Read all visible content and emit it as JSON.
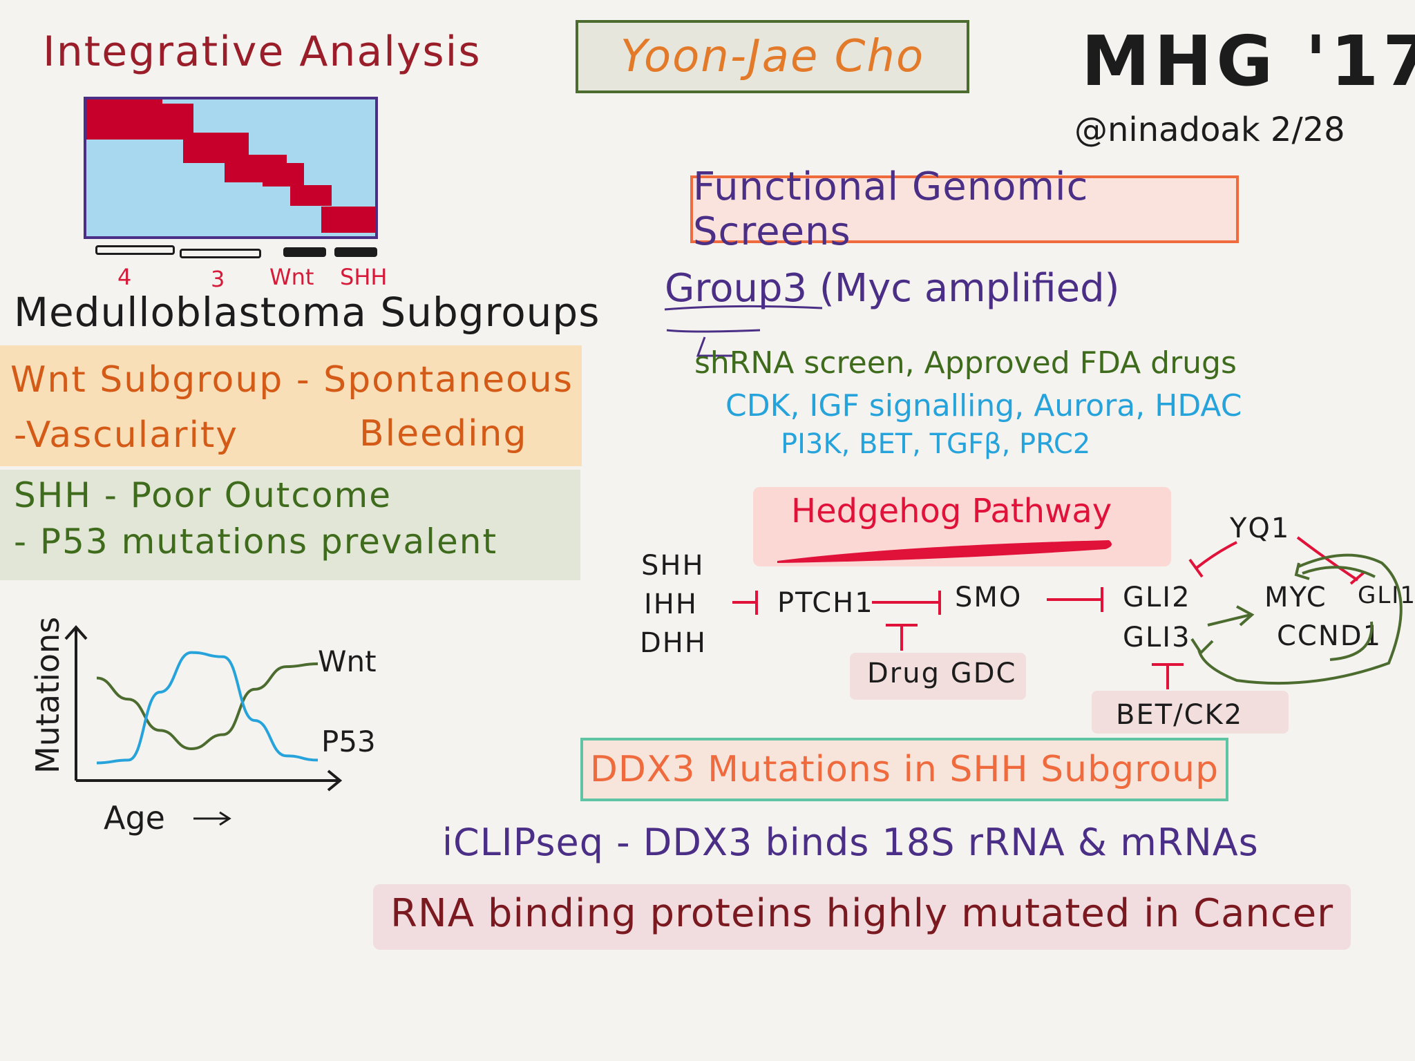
{
  "header": {
    "speaker": "Yoon-Jae Cho",
    "conference": "MHG '17",
    "handle": "@ninadoak 2/28"
  },
  "left": {
    "integrative_title": "Integrative Analysis",
    "heatmap_groups": [
      "4",
      "3",
      "Wnt",
      "SHH"
    ],
    "medullo_title": "Medulloblastoma Subgroups",
    "wnt_line1": "Wnt Subgroup - Spontaneous",
    "wnt_line2a": "-Vascularity",
    "wnt_line2b": "Bleeding",
    "shh_line1": "SHH - Poor Outcome",
    "shh_line2": "- P53 mutations prevalent"
  },
  "chart_data": {
    "type": "line",
    "xlabel": "Age",
    "ylabel": "Mutations",
    "series": [
      {
        "name": "Wnt",
        "values": [
          0.7,
          0.55,
          0.33,
          0.2,
          0.3,
          0.62,
          0.78,
          0.8
        ]
      },
      {
        "name": "P53",
        "values": [
          0.1,
          0.12,
          0.6,
          0.88,
          0.85,
          0.4,
          0.15,
          0.12
        ]
      }
    ],
    "colors": {
      "Wnt": "#4c6b2f",
      "P53": "#27a3dc"
    }
  },
  "right": {
    "fg_title": "Functional Genomic Screens",
    "group3": "Group3 (Myc amplified)",
    "shrna": "shRNA screen, Approved FDA drugs",
    "targets1": "CDK, IGF signalling, Aurora, HDAC",
    "targets2": "PI3K, BET, TGFβ, PRC2",
    "hedgehog_title": "Hedgehog Pathway",
    "ligands": [
      "SHH",
      "IHH",
      "DHH"
    ],
    "ptch": "PTCH1",
    "smo": "SMO",
    "gli2": "GLI2",
    "gli3": "GLI3",
    "yq1": "YQ1",
    "myc": "MYC",
    "gli1": "GLI1",
    "ccnd1": "CCND1",
    "drug": "Drug GDC",
    "bet": "BET/CK2",
    "ddx_title": "DDX3 Mutations in SHH Subgroup",
    "iclip": "iCLIPseq - DDX3 binds 18S rRNA & mRNAs",
    "rbp": "RNA binding proteins highly mutated in Cancer"
  }
}
